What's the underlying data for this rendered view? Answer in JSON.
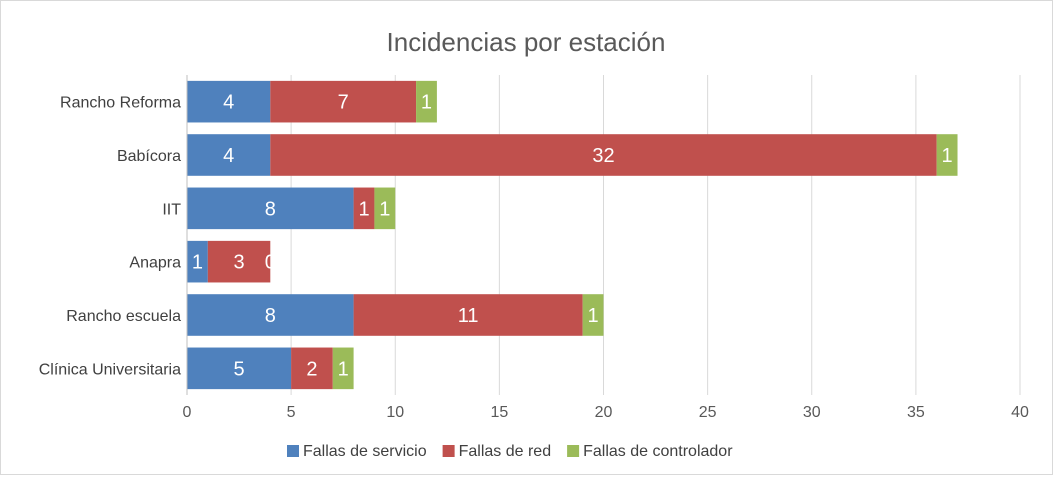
{
  "chart_data": {
    "type": "bar",
    "orientation": "horizontal",
    "stacked": true,
    "title": "Incidencias por estación",
    "categories": [
      "Clínica Universitaria",
      "Rancho escuela",
      "Anapra",
      "IIT",
      "Babícora",
      "Rancho Reforma"
    ],
    "series": [
      {
        "name": "Fallas de servicio",
        "color": "#4f81bd",
        "values": [
          5,
          8,
          1,
          8,
          4,
          4
        ]
      },
      {
        "name": "Fallas de red",
        "color": "#c0504d",
        "values": [
          2,
          11,
          3,
          1,
          32,
          7
        ]
      },
      {
        "name": "Fallas de controlador",
        "color": "#9bbb59",
        "values": [
          1,
          1,
          0,
          1,
          1,
          1
        ]
      }
    ],
    "xlim": [
      0,
      40
    ],
    "xticks": [
      0,
      5,
      10,
      15,
      20,
      25,
      30,
      35,
      40
    ],
    "grid": true,
    "legend_position": "bottom",
    "xlabel": "",
    "ylabel": ""
  }
}
